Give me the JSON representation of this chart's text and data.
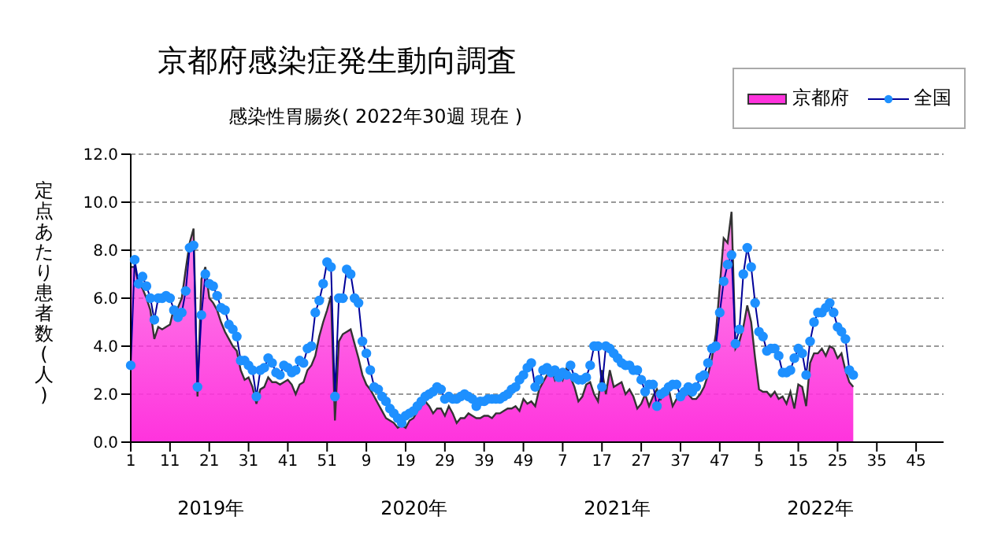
{
  "chart_data": {
    "type": "area",
    "title": "京都府感染症発生動向調査",
    "subtitle": "感染性胃腸炎( 2022年30週 現在 )",
    "ylabel": "定点あたり患者数(人)",
    "annotations": [
      "2019年",
      "2020年",
      "2021年",
      "2022年"
    ],
    "categories": [
      "1",
      null,
      null,
      null,
      null,
      null,
      null,
      null,
      null,
      null,
      "11",
      null,
      null,
      null,
      null,
      null,
      null,
      null,
      null,
      null,
      "21",
      null,
      null,
      null,
      null,
      null,
      null,
      null,
      null,
      null,
      "31",
      null,
      null,
      null,
      null,
      null,
      null,
      null,
      null,
      null,
      "41",
      null,
      null,
      null,
      null,
      null,
      null,
      null,
      null,
      null,
      "51",
      null,
      null,
      null,
      null,
      null,
      null,
      null,
      null,
      null,
      "9",
      null,
      null,
      null,
      null,
      null,
      null,
      null,
      null,
      null,
      "19",
      null,
      null,
      null,
      null,
      null,
      null,
      null,
      null,
      null,
      "29",
      null,
      null,
      null,
      null,
      null,
      null,
      null,
      null,
      null,
      "39",
      null,
      null,
      null,
      null,
      null,
      null,
      null,
      null,
      null,
      "49",
      null,
      null,
      null,
      null,
      null,
      null,
      null,
      null,
      null,
      "7",
      null,
      null,
      null,
      null,
      null,
      null,
      null,
      null,
      null,
      "17",
      null,
      null,
      null,
      null,
      null,
      null,
      null,
      null,
      null,
      "27",
      null,
      null,
      null,
      null,
      null,
      null,
      null,
      null,
      null,
      "37",
      null,
      null,
      null,
      null,
      null,
      null,
      null,
      null,
      null,
      "47",
      null,
      null,
      null,
      null,
      null,
      null,
      null,
      null,
      null,
      "5",
      null,
      null,
      null,
      null,
      null,
      null,
      null,
      null,
      null,
      "15",
      null,
      null,
      null,
      null,
      null,
      null,
      null,
      null,
      null,
      "25",
      null,
      null,
      null,
      null,
      null,
      null,
      null,
      null,
      null,
      "35",
      null,
      null,
      null,
      null,
      null,
      null,
      null,
      null,
      null,
      "45",
      null,
      null,
      null,
      null,
      null,
      null,
      null
    ],
    "series": [
      {
        "name": "京都府",
        "color": "#ff33dd",
        "values": [
          7.3,
          7.3,
          6.6,
          6.4,
          6.0,
          5.5,
          4.3,
          4.8,
          4.7,
          4.8,
          4.9,
          5.6,
          5.6,
          6.0,
          7.2,
          8.3,
          8.9,
          1.9,
          6.8,
          7.3,
          6.0,
          5.8,
          5.5,
          5.0,
          4.6,
          4.3,
          4.0,
          3.8,
          3.0,
          2.6,
          2.7,
          2.3,
          1.6,
          2.2,
          2.3,
          2.7,
          2.5,
          2.5,
          2.4,
          2.5,
          2.6,
          2.4,
          2.0,
          2.4,
          2.5,
          3.0,
          3.2,
          3.6,
          4.4,
          5.0,
          5.5,
          6.1,
          0.9,
          4.2,
          4.5,
          4.6,
          4.7,
          4.1,
          3.5,
          2.8,
          2.4,
          2.2,
          1.9,
          1.6,
          1.3,
          1.0,
          0.9,
          0.8,
          0.6,
          0.7,
          0.6,
          0.9,
          1.0,
          1.3,
          1.5,
          1.7,
          1.5,
          1.2,
          1.4,
          1.4,
          1.1,
          1.5,
          1.2,
          0.8,
          1.0,
          1.0,
          1.2,
          1.1,
          1.0,
          1.0,
          1.1,
          1.1,
          1.0,
          1.2,
          1.2,
          1.3,
          1.4,
          1.4,
          1.5,
          1.3,
          1.8,
          1.6,
          1.7,
          1.5,
          2.2,
          2.5,
          2.8,
          3.1,
          2.6,
          3.0,
          2.6,
          3.1,
          2.7,
          2.3,
          1.7,
          1.9,
          2.4,
          2.5,
          2.0,
          1.7,
          3.0,
          2.0,
          3.0,
          2.3,
          2.4,
          2.5,
          2.0,
          2.2,
          1.9,
          1.4,
          1.6,
          2.0,
          1.5,
          1.9,
          2.2,
          1.8,
          2.1,
          2.2,
          1.5,
          1.8,
          1.9,
          2.1,
          2.0,
          1.8,
          1.8,
          2.0,
          2.3,
          2.8,
          3.5,
          4.5,
          6.5,
          8.5,
          8.3,
          9.6,
          3.9,
          4.2,
          4.8,
          5.7,
          5.0,
          3.5,
          2.2,
          2.1,
          2.1,
          1.9,
          2.1,
          1.8,
          1.9,
          1.6,
          2.1,
          1.4,
          2.4,
          2.3,
          1.5,
          3.3,
          3.7,
          3.7,
          3.9,
          3.6,
          4.0,
          3.9,
          3.5,
          3.7,
          3.0,
          2.5,
          2.3,
          null,
          null,
          null,
          null,
          null,
          null,
          null,
          null,
          null,
          null,
          null,
          null,
          null,
          null,
          null,
          null,
          null,
          null,
          null,
          null,
          null,
          null,
          null
        ]
      },
      {
        "name": "全国",
        "type": "line",
        "marker": "circle",
        "color": "#1e90ff",
        "values": [
          3.2,
          7.6,
          6.6,
          6.9,
          6.5,
          6.0,
          5.1,
          6.0,
          6.0,
          6.1,
          6.0,
          5.5,
          5.2,
          5.4,
          6.3,
          8.1,
          8.2,
          2.3,
          5.3,
          7.0,
          6.6,
          6.5,
          6.1,
          5.6,
          5.5,
          4.9,
          4.7,
          4.4,
          3.4,
          3.4,
          3.2,
          3.0,
          1.9,
          3.0,
          3.1,
          3.5,
          3.3,
          2.9,
          2.8,
          3.2,
          3.1,
          2.9,
          3.0,
          3.4,
          3.3,
          3.9,
          4.0,
          5.4,
          5.9,
          6.6,
          7.5,
          7.3,
          1.9,
          6.0,
          6.0,
          7.2,
          7.0,
          6.0,
          5.8,
          4.2,
          3.7,
          3.0,
          2.3,
          2.2,
          1.9,
          1.7,
          1.4,
          1.2,
          1.0,
          0.8,
          1.1,
          1.2,
          1.3,
          1.5,
          1.7,
          1.9,
          2.0,
          2.1,
          2.3,
          2.2,
          1.8,
          1.9,
          1.8,
          1.8,
          1.9,
          2.0,
          1.9,
          1.8,
          1.5,
          1.7,
          1.7,
          1.8,
          1.8,
          1.8,
          1.8,
          1.9,
          2.0,
          2.2,
          2.3,
          2.6,
          2.8,
          3.1,
          3.3,
          2.3,
          2.6,
          3.0,
          3.1,
          2.9,
          3.0,
          2.7,
          2.9,
          2.8,
          3.2,
          2.7,
          2.6,
          2.6,
          2.7,
          3.2,
          4.0,
          4.0,
          2.3,
          4.0,
          3.9,
          3.7,
          3.5,
          3.3,
          3.2,
          3.2,
          3.0,
          3.0,
          2.6,
          2.1,
          2.4,
          2.4,
          1.5,
          2.0,
          2.1,
          2.3,
          2.4,
          2.4,
          1.9,
          2.1,
          2.3,
          2.1,
          2.3,
          2.7,
          2.8,
          3.3,
          3.9,
          4.0,
          5.4,
          6.7,
          7.4,
          7.8,
          4.1,
          4.7,
          7.0,
          8.1,
          7.3,
          5.8,
          4.6,
          4.4,
          3.8,
          3.9,
          3.9,
          3.6,
          2.9,
          2.9,
          3.0,
          3.5,
          3.9,
          3.7,
          2.8,
          4.2,
          5.0,
          5.4,
          5.4,
          5.6,
          5.8,
          5.4,
          4.8,
          4.6,
          4.3,
          3.0,
          2.8,
          null,
          null,
          null,
          null,
          null,
          null,
          null,
          null,
          null,
          null,
          null,
          null,
          null,
          null,
          null,
          null,
          null,
          null,
          null,
          null,
          null,
          null,
          null
        ]
      }
    ],
    "ylim": [
      0,
      12
    ],
    "yticks": [
      {
        "value": 0,
        "label": "0.0"
      },
      {
        "value": 2,
        "label": "2.0"
      },
      {
        "value": 4,
        "label": "4.0"
      },
      {
        "value": 6,
        "label": "6.0"
      },
      {
        "value": 8,
        "label": "8.0"
      },
      {
        "value": 10,
        "label": "10.0"
      },
      {
        "value": 12,
        "label": "12.0"
      }
    ],
    "grid": "y",
    "legend": "top right"
  }
}
